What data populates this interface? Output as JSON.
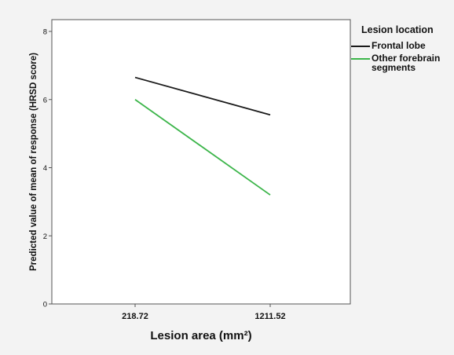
{
  "chart_data": {
    "type": "line",
    "xlabel": "Lesion area (mm²)",
    "ylabel": "Predicted value of mean of response (HRSD score)",
    "categories": [
      "218.72",
      "1211.52"
    ],
    "yticks": [
      "0",
      "2",
      "4",
      "6",
      "8"
    ],
    "ylim": [
      0,
      8
    ],
    "legend_title": "Lesion location",
    "legend_position": "right",
    "series": [
      {
        "name": "Frontal lobe",
        "color": "#1a1a1a",
        "values": [
          6.65,
          5.55
        ]
      },
      {
        "name": "Other forebrain segments",
        "name_lines": [
          "Other forebrain",
          "segments"
        ],
        "color": "#3cb54a",
        "values": [
          6.0,
          3.2
        ]
      }
    ],
    "grid": false
  }
}
